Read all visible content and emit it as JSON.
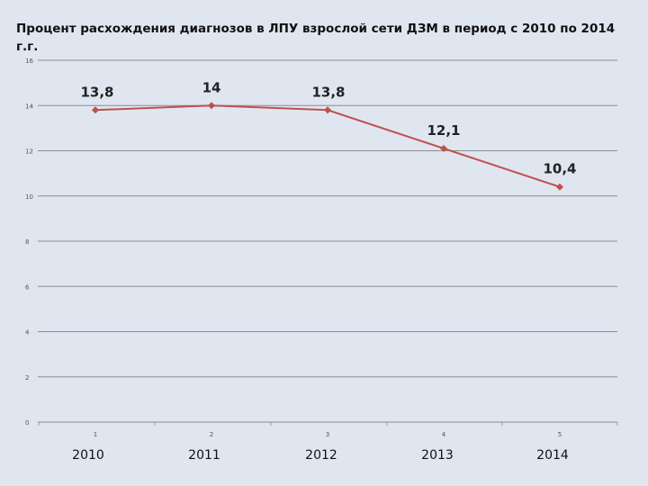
{
  "slide": {
    "title": "Процент расхождения диагнозов в ЛПУ взрослой сети  ДЗМ в период  с 2010  по 2014 г.г."
  },
  "colors": {
    "background": "#dfe6f0",
    "series": "#c0504d",
    "grid": "#8c8c8c"
  },
  "chart_data": {
    "type": "line",
    "title": "",
    "xlabel": "",
    "ylabel": "",
    "x": [
      1,
      2,
      3,
      4,
      5
    ],
    "x_tick_labels": [
      "1",
      "2",
      "3",
      "4",
      "5"
    ],
    "year_labels": [
      "2010",
      "2011",
      "2012",
      "2013",
      "2014"
    ],
    "series": [
      {
        "values": [
          13.8,
          14,
          13.8,
          12.1,
          10.4
        ],
        "data_labels": [
          "13,8",
          "14",
          "13,8",
          "12,1",
          "10,4"
        ],
        "color": "#c0504d",
        "marker": "diamond"
      }
    ],
    "ylim": [
      0,
      16
    ],
    "y_ticks": [
      0,
      2,
      4,
      6,
      8,
      10,
      12,
      14,
      16
    ],
    "grid": true,
    "legend": "none"
  }
}
